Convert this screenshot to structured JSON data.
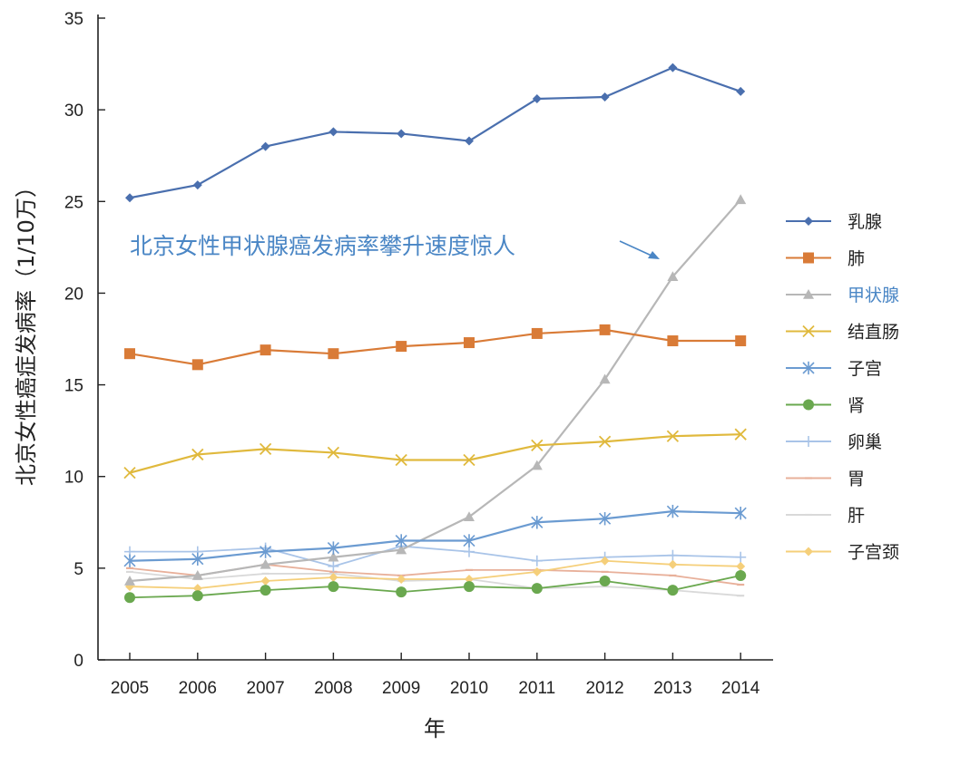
{
  "chart_data": {
    "type": "line",
    "title": "",
    "xlabel": "年",
    "ylabel": "北京女性癌症发病率（1/10万）",
    "ylim": [
      0,
      35
    ],
    "yticks": [
      0,
      5,
      10,
      15,
      20,
      25,
      30,
      35
    ],
    "categories": [
      "2005",
      "2006",
      "2007",
      "2008",
      "2009",
      "2010",
      "2011",
      "2012",
      "2013",
      "2014"
    ],
    "grid": false,
    "legend_position": "right",
    "annotation": {
      "text": "北京女性甲状腺癌发病率攀升速度惊人",
      "color": "#4a86c5"
    },
    "series": [
      {
        "name": "乳腺",
        "color": "#4a6fae",
        "marker": "diamond",
        "values": [
          25.2,
          25.9,
          28.0,
          28.8,
          28.7,
          28.3,
          30.6,
          30.7,
          32.3,
          31.0
        ]
      },
      {
        "name": "肺",
        "color": "#d97b37",
        "marker": "square",
        "values": [
          16.7,
          16.1,
          16.9,
          16.7,
          17.1,
          17.3,
          17.8,
          18.0,
          17.4,
          17.4
        ]
      },
      {
        "name": "甲状腺",
        "color": "#b7b7b7",
        "marker": "triangle",
        "label_color": "#4a86c5",
        "values": [
          4.3,
          4.6,
          5.2,
          5.6,
          6.0,
          7.8,
          10.6,
          15.3,
          20.9,
          25.1
        ]
      },
      {
        "name": "结直肠",
        "color": "#e0b93d",
        "marker": "x",
        "values": [
          10.2,
          11.2,
          11.5,
          11.3,
          10.9,
          10.9,
          11.7,
          11.9,
          12.2,
          12.3
        ]
      },
      {
        "name": "子宫",
        "color": "#6b9bd1",
        "marker": "star",
        "values": [
          5.4,
          5.5,
          5.9,
          6.1,
          6.5,
          6.5,
          7.5,
          7.7,
          8.1,
          8.0
        ]
      },
      {
        "name": "肾",
        "color": "#6aa84f",
        "marker": "circle",
        "values": [
          3.4,
          3.5,
          3.8,
          4.0,
          3.7,
          4.0,
          3.9,
          4.3,
          3.8,
          4.6
        ]
      },
      {
        "name": "卵巢",
        "color": "#a9c4e8",
        "marker": "plus",
        "values": [
          5.9,
          5.9,
          6.1,
          5.1,
          6.2,
          5.9,
          5.4,
          5.6,
          5.7,
          5.6
        ]
      },
      {
        "name": "胃",
        "color": "#e8b09a",
        "marker": "dash",
        "values": [
          5.0,
          4.6,
          5.2,
          4.8,
          4.6,
          4.9,
          4.9,
          4.8,
          4.6,
          4.1
        ]
      },
      {
        "name": "肝",
        "color": "#d9d9d9",
        "marker": "dash",
        "values": [
          4.8,
          4.4,
          4.7,
          4.7,
          4.3,
          4.4,
          3.9,
          4.0,
          3.8,
          3.5
        ]
      },
      {
        "name": "子宫颈",
        "color": "#f5cf7a",
        "marker": "diamond",
        "values": [
          4.0,
          3.9,
          4.3,
          4.5,
          4.4,
          4.4,
          4.8,
          5.4,
          5.2,
          5.1
        ]
      }
    ]
  }
}
